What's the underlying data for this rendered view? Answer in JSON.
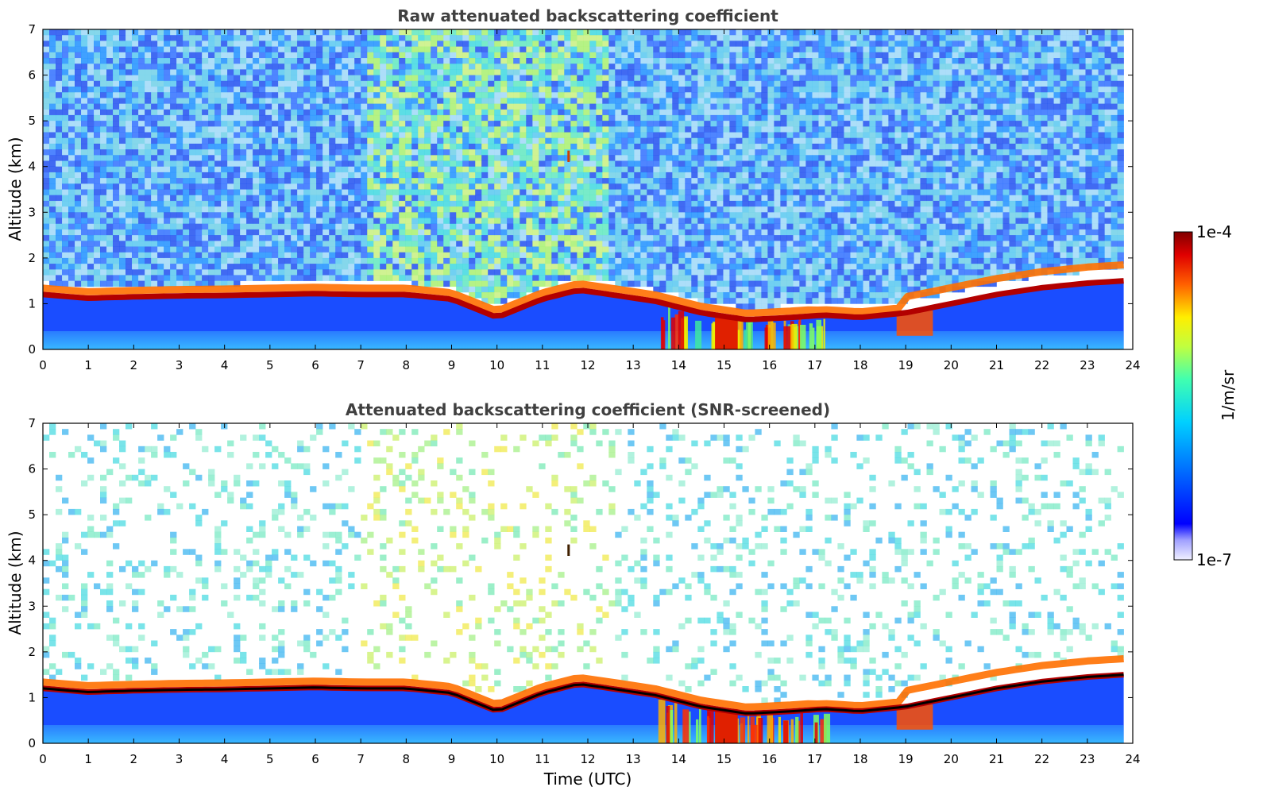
{
  "colors": {
    "sky_low": "#1f6fff",
    "noise_blue": "#0a3cff",
    "cloud": "#b20000",
    "black": "#000000"
  },
  "chart_data": [
    {
      "type": "heatmap",
      "id": "raw",
      "title": "Raw attenuated backscattering coefficient",
      "xlabel": "",
      "ylabel": "Altitude (km)",
      "xlim": [
        0,
        24
      ],
      "ylim": [
        0,
        7
      ],
      "xticks": [
        "0",
        "1",
        "2",
        "3",
        "4",
        "5",
        "6",
        "7",
        "8",
        "9",
        "10",
        "11",
        "12",
        "13",
        "14",
        "15",
        "16",
        "17",
        "18",
        "19",
        "20",
        "21",
        "22",
        "23",
        "24"
      ],
      "yticks": [
        "0",
        "1",
        "2",
        "3",
        "4",
        "5",
        "6",
        "7"
      ],
      "time_end": 23.8,
      "noise_fill": 1.0,
      "cloud_layer_base_km": [
        [
          0,
          1.2
        ],
        [
          1,
          1.12
        ],
        [
          2,
          1.15
        ],
        [
          3,
          1.17
        ],
        [
          4,
          1.18
        ],
        [
          5,
          1.2
        ],
        [
          6,
          1.22
        ],
        [
          7,
          1.2
        ],
        [
          8,
          1.2
        ],
        [
          9,
          1.1
        ],
        [
          10,
          0.7
        ],
        [
          11,
          1.1
        ],
        [
          11.8,
          1.3
        ],
        [
          12.5,
          1.2
        ],
        [
          13.5,
          1.05
        ],
        [
          14.5,
          0.8
        ],
        [
          15.5,
          0.65
        ],
        [
          16.5,
          0.7
        ],
        [
          17.2,
          0.75
        ],
        [
          18,
          0.7
        ],
        [
          19,
          0.8
        ],
        [
          20,
          1.0
        ],
        [
          21,
          1.2
        ],
        [
          22,
          1.35
        ],
        [
          23,
          1.45
        ],
        [
          23.8,
          1.5
        ]
      ]
    },
    {
      "type": "heatmap",
      "id": "screened",
      "title": "Attenuated backscattering coefficient (SNR-screened)",
      "xlabel": "Time (UTC)",
      "ylabel": "Altitude (km)",
      "xlim": [
        0,
        24
      ],
      "ylim": [
        0,
        7
      ],
      "xticks": [
        "0",
        "1",
        "2",
        "3",
        "4",
        "5",
        "6",
        "7",
        "8",
        "9",
        "10",
        "11",
        "12",
        "13",
        "14",
        "15",
        "16",
        "17",
        "18",
        "19",
        "20",
        "21",
        "22",
        "23",
        "24"
      ],
      "yticks": [
        "0",
        "1",
        "2",
        "3",
        "4",
        "5",
        "6",
        "7"
      ],
      "time_end": 23.8,
      "noise_fill": 0.18,
      "cloud_layer_base_km": [
        [
          0,
          1.2
        ],
        [
          1,
          1.12
        ],
        [
          2,
          1.15
        ],
        [
          3,
          1.17
        ],
        [
          4,
          1.18
        ],
        [
          5,
          1.2
        ],
        [
          6,
          1.22
        ],
        [
          7,
          1.2
        ],
        [
          8,
          1.2
        ],
        [
          9,
          1.1
        ],
        [
          10,
          0.7
        ],
        [
          11,
          1.1
        ],
        [
          11.8,
          1.3
        ],
        [
          12.5,
          1.2
        ],
        [
          13.5,
          1.05
        ],
        [
          14.5,
          0.8
        ],
        [
          15.5,
          0.65
        ],
        [
          16.5,
          0.7
        ],
        [
          17.2,
          0.75
        ],
        [
          18,
          0.7
        ],
        [
          19,
          0.8
        ],
        [
          20,
          1.0
        ],
        [
          21,
          1.2
        ],
        [
          22,
          1.35
        ],
        [
          23,
          1.45
        ],
        [
          23.8,
          1.5
        ]
      ]
    }
  ],
  "colorbar": {
    "label": "1/m/sr",
    "max_label": "1e-4",
    "min_label": "1e-7",
    "colormap": "jet"
  }
}
